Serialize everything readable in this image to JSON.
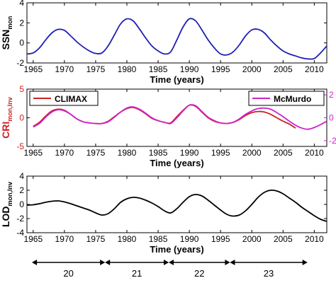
{
  "chart_data": [
    {
      "type": "line",
      "ylabel": "SSN",
      "ylabel_sub": "mon",
      "xlabel": "Time (years)",
      "xlim": [
        1964,
        2012
      ],
      "ylim": [
        -2,
        4
      ],
      "yticks": [
        -2,
        0,
        2,
        4
      ],
      "xticks": [
        1965,
        1970,
        1975,
        1980,
        1985,
        1990,
        1995,
        2000,
        2005,
        2010
      ],
      "grid": false,
      "series": [
        {
          "color": "#1f1fb4",
          "x": [
            1964,
            1965,
            1966,
            1967,
            1968,
            1969,
            1970,
            1971,
            1972,
            1973,
            1974,
            1975,
            1976,
            1977,
            1978,
            1979,
            1980,
            1981,
            1982,
            1983,
            1984,
            1985,
            1986,
            1987,
            1988,
            1989,
            1990,
            1991,
            1992,
            1993,
            1994,
            1995,
            1996,
            1997,
            1998,
            1999,
            2000,
            2001,
            2002,
            2003,
            2004,
            2005,
            2006,
            2007,
            2008,
            2009,
            2010,
            2011,
            2012
          ],
          "y": [
            -1.1,
            -1.0,
            -0.5,
            0.3,
            1.0,
            1.35,
            1.25,
            0.7,
            0.1,
            -0.4,
            -0.8,
            -1.05,
            -1.0,
            -0.3,
            0.8,
            1.9,
            2.4,
            2.2,
            1.4,
            0.5,
            -0.3,
            -0.8,
            -1.1,
            -0.9,
            0.3,
            1.6,
            2.4,
            2.2,
            1.3,
            0.3,
            -0.5,
            -1.1,
            -1.2,
            -0.9,
            -0.2,
            0.7,
            1.3,
            1.35,
            1.0,
            0.3,
            -0.3,
            -0.8,
            -1.1,
            -1.3,
            -1.5,
            -1.6,
            -1.55,
            -1.0,
            -0.3
          ]
        }
      ]
    },
    {
      "type": "line",
      "ylabel": "CRI",
      "ylabel_sub": "mon,Inv",
      "xlabel": "Time (years)",
      "xlim": [
        1964,
        2012
      ],
      "ylim": [
        -5,
        5
      ],
      "yticks": [
        -5,
        0,
        5
      ],
      "y2ticks": [
        -2,
        0,
        2
      ],
      "xticks": [
        1965,
        1970,
        1975,
        1980,
        1985,
        1990,
        1995,
        2000,
        2005,
        2010
      ],
      "grid": false,
      "legend": [
        "top-left",
        "top-right"
      ],
      "series": [
        {
          "name": "CLIMAX",
          "color": "#cc2222",
          "x": [
            1965,
            1966,
            1967,
            1968,
            1969,
            1970,
            1971,
            1972,
            1973,
            1974,
            1975,
            1976,
            1977,
            1978,
            1979,
            1980,
            1981,
            1982,
            1983,
            1984,
            1985,
            1986,
            1987,
            1988,
            1989,
            1990,
            1991,
            1992,
            1993,
            1994,
            1995,
            1996,
            1997,
            1998,
            1999,
            2000,
            2001,
            2002,
            2003,
            2004,
            2005,
            2006,
            2007
          ],
          "y": [
            -1.5,
            -0.8,
            0.3,
            1.2,
            1.5,
            1.3,
            0.6,
            -0.2,
            -0.7,
            -0.9,
            -1.0,
            -1.0,
            -0.6,
            0.2,
            1.0,
            1.6,
            1.8,
            1.4,
            0.7,
            -0.1,
            -0.5,
            -0.8,
            -0.9,
            0.2,
            1.3,
            2.2,
            2.0,
            1.0,
            0.0,
            -0.6,
            -0.9,
            -1.0,
            -0.8,
            -0.3,
            0.4,
            0.9,
            1.1,
            1.0,
            0.6,
            0.0,
            -0.6,
            -1.1,
            -1.8
          ]
        },
        {
          "name": "McMurdo",
          "color": "#cc22cc",
          "x": [
            1965,
            1966,
            1967,
            1968,
            1969,
            1970,
            1971,
            1972,
            1973,
            1974,
            1975,
            1976,
            1977,
            1978,
            1979,
            1980,
            1981,
            1982,
            1983,
            1984,
            1985,
            1986,
            1987,
            1988,
            1989,
            1990,
            1991,
            1992,
            1993,
            1994,
            1995,
            1996,
            1997,
            1998,
            1999,
            2000,
            2001,
            2002,
            2003,
            2004,
            2005,
            2006,
            2007,
            2008,
            2009,
            2010,
            2011,
            2012
          ],
          "y": [
            -1.6,
            -1.0,
            0.1,
            1.0,
            1.4,
            1.2,
            0.6,
            -0.2,
            -0.7,
            -0.9,
            -1.0,
            -1.0,
            -0.7,
            0.1,
            1.0,
            1.7,
            1.9,
            1.5,
            0.8,
            0.0,
            -0.5,
            -0.8,
            -1.0,
            0.0,
            1.2,
            2.2,
            2.1,
            1.1,
            0.1,
            -0.5,
            -0.9,
            -1.0,
            -0.8,
            -0.2,
            0.6,
            1.2,
            1.6,
            1.7,
            1.5,
            0.9,
            0.2,
            -0.6,
            -1.3,
            -1.8,
            -2.0,
            -1.7,
            -1.2,
            -0.6
          ]
        }
      ]
    },
    {
      "type": "line",
      "ylabel": "LOD",
      "ylabel_sub": "mon,Inv",
      "xlabel": "Time (years)",
      "xlim": [
        1964,
        2012
      ],
      "ylim": [
        -4,
        4
      ],
      "yticks": [
        -4,
        -2,
        0,
        2,
        4
      ],
      "xticks": [
        1965,
        1970,
        1975,
        1980,
        1985,
        1990,
        1995,
        2000,
        2005,
        2010
      ],
      "grid": false,
      "series": [
        {
          "color": "#000000",
          "x": [
            1964,
            1965,
            1966,
            1967,
            1968,
            1969,
            1970,
            1971,
            1972,
            1973,
            1974,
            1975,
            1976,
            1977,
            1978,
            1979,
            1980,
            1981,
            1982,
            1983,
            1984,
            1985,
            1986,
            1987,
            1988,
            1989,
            1990,
            1991,
            1992,
            1993,
            1994,
            1995,
            1996,
            1997,
            1998,
            1999,
            2000,
            2001,
            2002,
            2003,
            2004,
            2005,
            2006,
            2007,
            2008,
            2009,
            2010,
            2011,
            2012
          ],
          "y": [
            -0.1,
            -0.05,
            0.1,
            0.3,
            0.45,
            0.5,
            0.35,
            0.1,
            -0.2,
            -0.5,
            -0.8,
            -1.2,
            -1.5,
            -1.3,
            -0.6,
            0.3,
            0.8,
            1.0,
            0.9,
            0.6,
            0.2,
            -0.3,
            -0.9,
            -1.2,
            -0.6,
            0.3,
            1.1,
            1.4,
            1.2,
            0.6,
            -0.1,
            -0.8,
            -1.4,
            -1.65,
            -1.5,
            -0.9,
            0.0,
            1.0,
            1.7,
            2.0,
            1.9,
            1.5,
            0.9,
            0.3,
            -0.4,
            -1.0,
            -1.6,
            -2.1,
            -2.4
          ]
        }
      ]
    }
  ],
  "solar_cycles": [
    {
      "label": "20",
      "start": 1964.8,
      "end": 1976.5
    },
    {
      "label": "21",
      "start": 1976.5,
      "end": 1986.7
    },
    {
      "label": "22",
      "start": 1986.7,
      "end": 1996.5
    },
    {
      "label": "23",
      "start": 1996.5,
      "end": 2008.9
    }
  ]
}
